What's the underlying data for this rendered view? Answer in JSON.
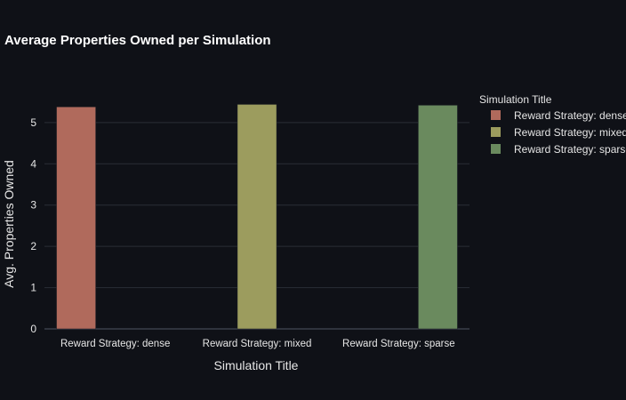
{
  "chart_data": {
    "type": "bar",
    "title": "Average Properties Owned per Simulation",
    "xlabel": "Simulation Title",
    "ylabel": "Avg. Properties Owned",
    "categories": [
      "Reward Strategy: dense",
      "Reward Strategy: mixed",
      "Reward Strategy: sparse"
    ],
    "series": [
      {
        "name": "Reward Strategy: dense",
        "category": "Reward Strategy: dense",
        "value": 5.38,
        "color": "#b06a5c"
      },
      {
        "name": "Reward Strategy: mixed",
        "category": "Reward Strategy: mixed",
        "value": 5.44,
        "color": "#9c9c5e"
      },
      {
        "name": "Reward Strategy: sparse",
        "category": "Reward Strategy: sparse",
        "value": 5.42,
        "color": "#6a8a5e"
      }
    ],
    "ylim": [
      0,
      5.6
    ],
    "yticks": [
      0,
      1,
      2,
      3,
      4,
      5
    ],
    "legend": {
      "title": "Simulation Title",
      "placement": "right"
    },
    "grid": true
  },
  "colors": {
    "background": "#0f1117",
    "grid": "#2a2e37",
    "axis_text": "#e6e6e6",
    "title": "#ffffff"
  }
}
